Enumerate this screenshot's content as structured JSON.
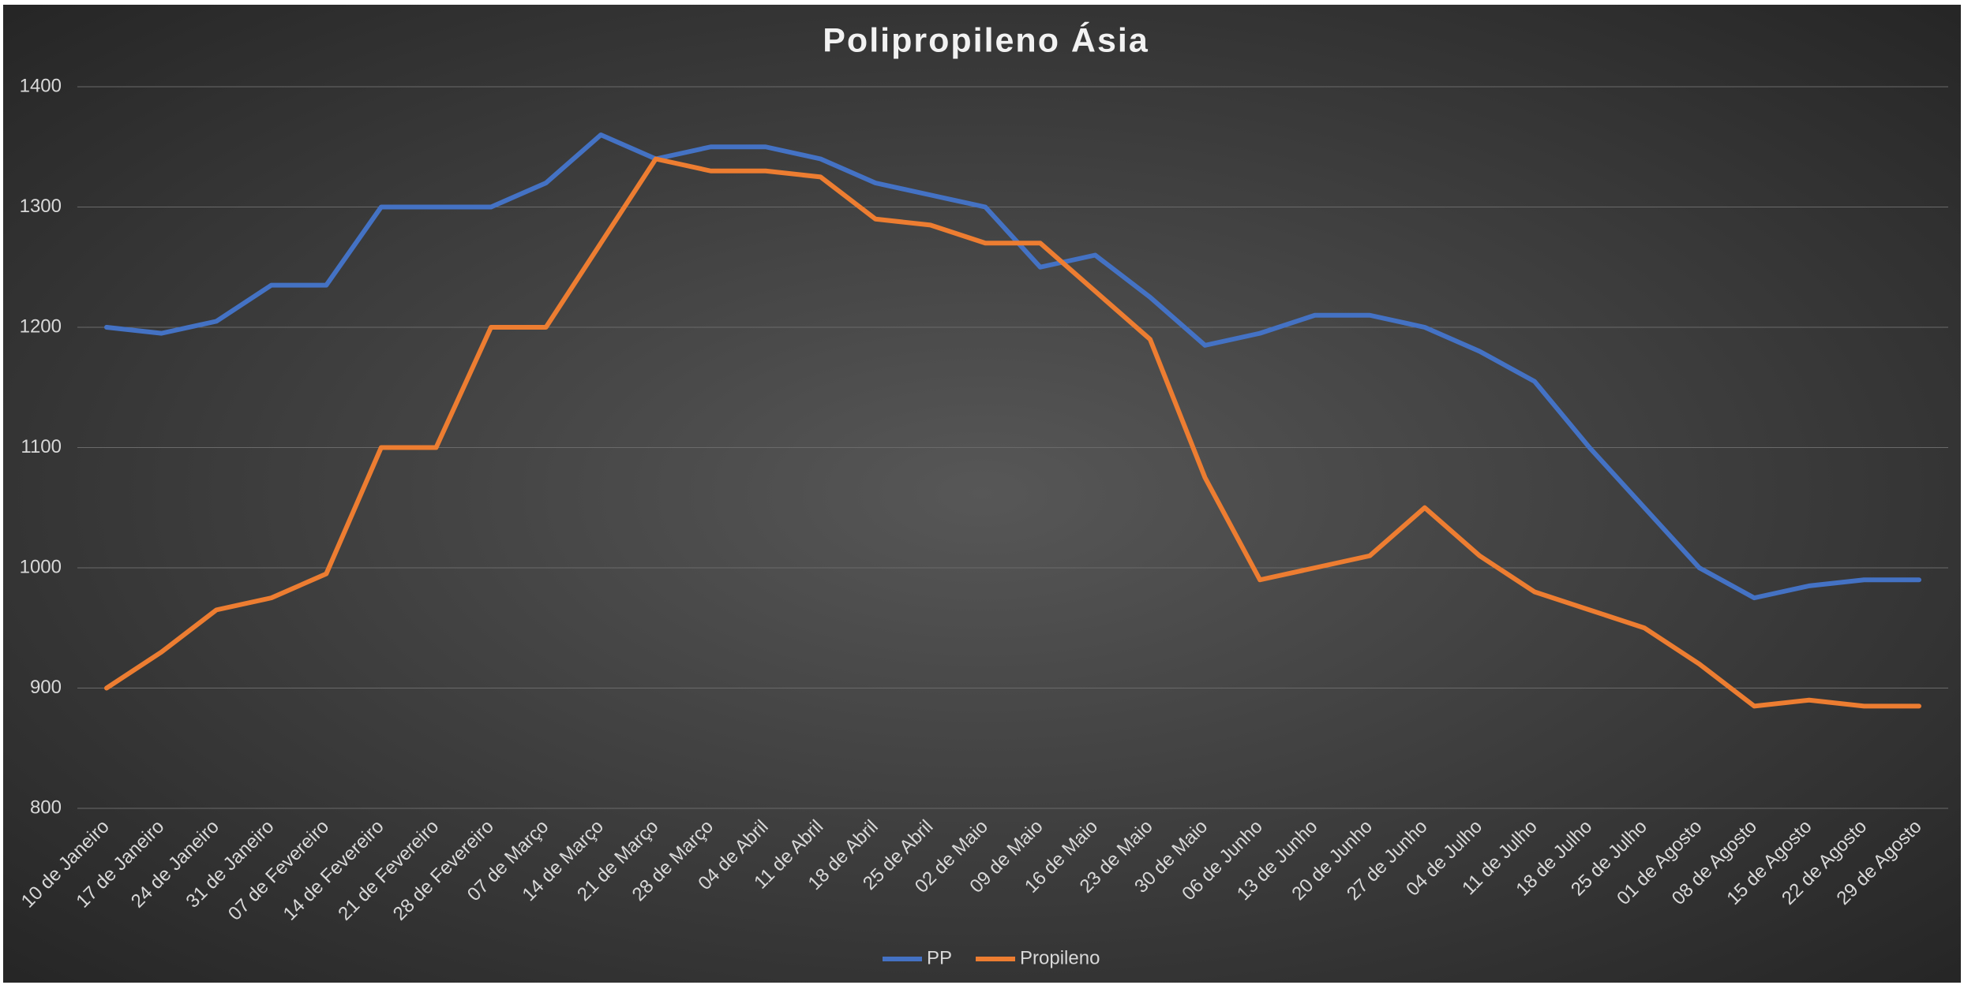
{
  "chart_data": {
    "type": "line",
    "title": "Polipropileno Ásia",
    "categories": [
      "10 de Janeiro",
      "17 de Janeiro",
      "24 de Janeiro",
      "31 de Janeiro",
      "07 de Fevereiro",
      "14 de Fevereiro",
      "21 de Fevereiro",
      "28 de Fevereiro",
      "07 de Março",
      "14 de Março",
      "21 de Março",
      "28 de Março",
      "04 de Abril",
      "11 de Abril",
      "18 de Abril",
      "25 de Abril",
      "02 de Maio",
      "09 de Maio",
      "16 de Maio",
      "23 de Maio",
      "30 de Maio",
      "06 de Junho",
      "13 de Junho",
      "20 de Junho",
      "27 de Junho",
      "04 de Julho",
      "11 de Julho",
      "18 de Julho",
      "25 de Julho",
      "01 de Agosto",
      "08 de Agosto",
      "15 de Agosto",
      "22 de Agosto",
      "29 de Agosto"
    ],
    "series": [
      {
        "name": "PP",
        "color": "#4472c4",
        "values": [
          1200,
          1195,
          1205,
          1235,
          1235,
          1300,
          1300,
          1300,
          1320,
          1360,
          1340,
          1350,
          1350,
          1340,
          1320,
          1310,
          1300,
          1250,
          1260,
          1225,
          1185,
          1195,
          1210,
          1210,
          1200,
          1180,
          1155,
          1100,
          1050,
          1000,
          975,
          985,
          990,
          990
        ]
      },
      {
        "name": "Propileno",
        "color": "#ed7d31",
        "values": [
          900,
          930,
          965,
          975,
          995,
          1100,
          1100,
          1200,
          1200,
          1270,
          1340,
          1330,
          1330,
          1325,
          1290,
          1285,
          1270,
          1270,
          1230,
          1190,
          1075,
          990,
          1000,
          1010,
          1050,
          1010,
          980,
          965,
          950,
          920,
          885,
          890,
          885,
          885
        ]
      }
    ],
    "ylim": [
      800,
      1400
    ],
    "yticks": [
      800,
      900,
      1000,
      1100,
      1200,
      1300,
      1400
    ],
    "grid": true,
    "legend": "bottom"
  }
}
